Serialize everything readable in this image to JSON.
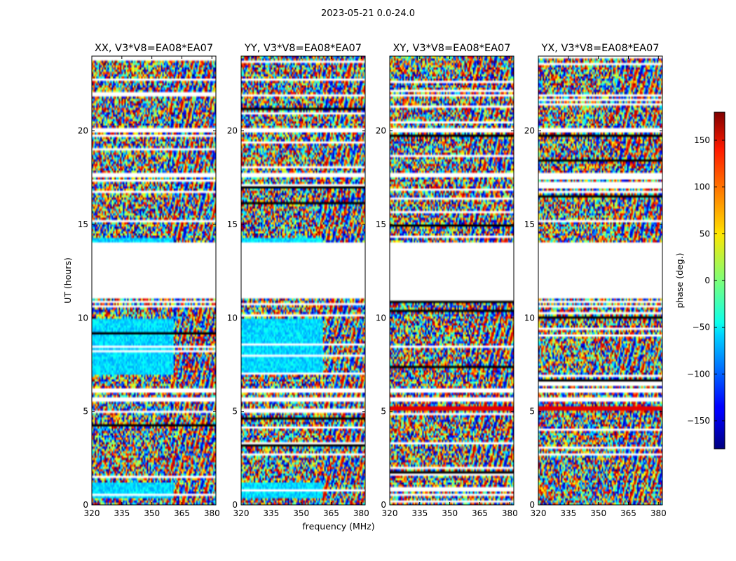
{
  "chart_data": {
    "type": "heatmap",
    "title": "2023-05-21 0.0-24.0",
    "xlabel": "frequency (MHz)",
    "ylabel": "UT (hours)",
    "xlim": [
      320,
      382
    ],
    "ylim": [
      0,
      24
    ],
    "xticks": [
      "320",
      "335",
      "350",
      "365",
      "380"
    ],
    "xtick_values": [
      320,
      335,
      350,
      365,
      380
    ],
    "yticks": [
      "0",
      "5",
      "10",
      "15",
      "20"
    ],
    "ytick_values": [
      0,
      5,
      10,
      15,
      20
    ],
    "panels": [
      {
        "title": "XX, V3*V8=EA08*EA07",
        "pol": "XX"
      },
      {
        "title": "YY, V3*V8=EA08*EA07",
        "pol": "YY"
      },
      {
        "title": "XY, V3*V8=EA08*EA07",
        "pol": "XY"
      },
      {
        "title": "YX, V3*V8=EA08*EA07",
        "pol": "YX"
      }
    ],
    "colorbar": {
      "label": "phase (deg.)",
      "range": [
        -180,
        180
      ],
      "ticks": [
        "150",
        "100",
        "50",
        "0",
        "−50",
        "−100",
        "−150"
      ],
      "tick_values": [
        150,
        100,
        50,
        0,
        -50,
        -100,
        -150
      ],
      "colormap": "jet"
    },
    "flagged_ut_ranges": [
      [
        12.5,
        14.0
      ],
      [
        11.0,
        12.5
      ],
      [
        21.8,
        22.0
      ],
      [
        19.95,
        20.15
      ],
      [
        17.5,
        17.8
      ],
      [
        6.05,
        6.2
      ],
      [
        5.55,
        5.75
      ]
    ]
  }
}
